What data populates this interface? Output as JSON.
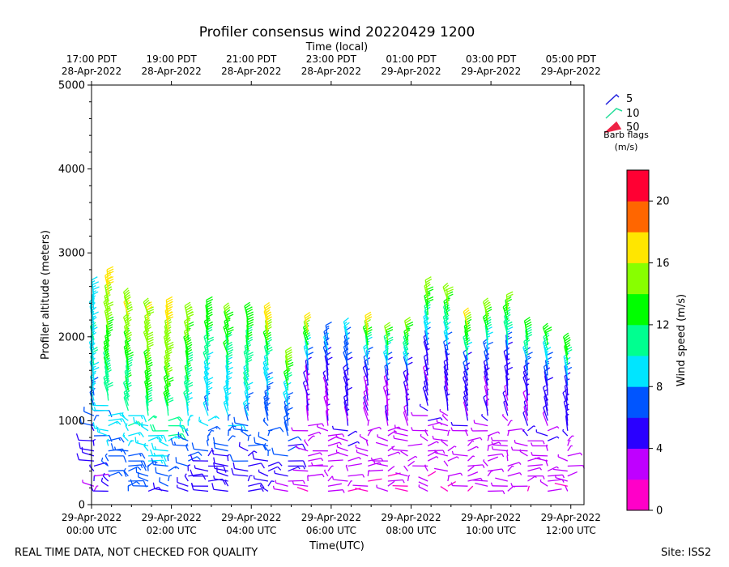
{
  "chart_data": {
    "type": "scatter",
    "title": "Profiler consensus wind 20220429 1200",
    "top_axis_label": "Time (local)",
    "xlabel": "Time(UTC)",
    "ylabel": "Profiler altitude (meters)",
    "ylim": [
      0,
      5000
    ],
    "xlim_hours": [
      0,
      12.33
    ],
    "y_ticks": [
      0,
      1000,
      2000,
      3000,
      4000,
      5000
    ],
    "bottom_ticks": [
      {
        "hour": 0,
        "line1": "29-Apr-2022",
        "line2": "00:00 UTC"
      },
      {
        "hour": 2,
        "line1": "29-Apr-2022",
        "line2": "02:00 UTC"
      },
      {
        "hour": 4,
        "line1": "29-Apr-2022",
        "line2": "04:00 UTC"
      },
      {
        "hour": 6,
        "line1": "29-Apr-2022",
        "line2": "06:00 UTC"
      },
      {
        "hour": 8,
        "line1": "29-Apr-2022",
        "line2": "08:00 UTC"
      },
      {
        "hour": 10,
        "line1": "29-Apr-2022",
        "line2": "10:00 UTC"
      },
      {
        "hour": 12,
        "line1": "29-Apr-2022",
        "line2": "12:00 UTC"
      }
    ],
    "top_ticks": [
      {
        "hour": 0,
        "line1": "17:00 PDT",
        "line2": "28-Apr-2022"
      },
      {
        "hour": 2,
        "line1": "19:00 PDT",
        "line2": "28-Apr-2022"
      },
      {
        "hour": 4,
        "line1": "21:00 PDT",
        "line2": "28-Apr-2022"
      },
      {
        "hour": 6,
        "line1": "23:00 PDT",
        "line2": "28-Apr-2022"
      },
      {
        "hour": 8,
        "line1": "01:00 PDT",
        "line2": "29-Apr-2022"
      },
      {
        "hour": 10,
        "line1": "03:00 PDT",
        "line2": "29-Apr-2022"
      },
      {
        "hour": 12,
        "line1": "05:00 PDT",
        "line2": "29-Apr-2022"
      }
    ],
    "legend": {
      "title": "Barb flags",
      "units": "(m/s)",
      "placement": "upper-right",
      "entries": [
        {
          "label": "5",
          "color": "#2222dd"
        },
        {
          "label": "10",
          "color": "#22dd99"
        },
        {
          "label": "50",
          "color": "#ee2244"
        }
      ]
    },
    "colorbar": {
      "label": "Wind speed (m/s)",
      "vmin": 0,
      "vmax": 22,
      "ticks": [
        0,
        4,
        8,
        12,
        16,
        20
      ],
      "colors": [
        "#ff00c8",
        "#bf00ff",
        "#2a00ff",
        "#0055ff",
        "#00e5ff",
        "#00ff90",
        "#00ff00",
        "#88ff00",
        "#ffe600",
        "#ff6600",
        "#ff0033"
      ]
    },
    "profiles": [
      {
        "hour": 0.06,
        "top": 2500,
        "vlow": 3,
        "vmax": 10,
        "vtop": 8
      },
      {
        "hour": 0.42,
        "top": 2650,
        "vlow": 5,
        "vmax": 13,
        "vtop": 17
      },
      {
        "hour": 0.92,
        "top": 2400,
        "vlow": 5,
        "vmax": 13,
        "vtop": 16
      },
      {
        "hour": 1.42,
        "top": 2300,
        "vlow": 5,
        "vmax": 14,
        "vtop": 16
      },
      {
        "hour": 1.92,
        "top": 2270,
        "vlow": 5,
        "vmax": 15,
        "vtop": 17
      },
      {
        "hour": 2.42,
        "top": 2240,
        "vlow": 4,
        "vmax": 12,
        "vtop": 16
      },
      {
        "hour": 2.92,
        "top": 2300,
        "vlow": 4,
        "vmax": 10,
        "vtop": 14
      },
      {
        "hour": 3.42,
        "top": 2250,
        "vlow": 4,
        "vmax": 10,
        "vtop": 15
      },
      {
        "hour": 3.92,
        "top": 2200,
        "vlow": 4,
        "vmax": 10,
        "vtop": 14
      },
      {
        "hour": 4.42,
        "top": 2200,
        "vlow": 4,
        "vmax": 9,
        "vtop": 18
      },
      {
        "hour": 4.92,
        "top": 1700,
        "vlow": 3,
        "vmax": 8,
        "vtop": 17
      },
      {
        "hour": 5.42,
        "top": 2100,
        "vlow": 2,
        "vmax": 4,
        "vtop": 16
      },
      {
        "hour": 5.92,
        "top": 2000,
        "vlow": 2,
        "vmax": 4,
        "vtop": 9
      },
      {
        "hour": 6.42,
        "top": 2050,
        "vlow": 2,
        "vmax": 5,
        "vtop": 9
      },
      {
        "hour": 6.92,
        "top": 2100,
        "vlow": 2,
        "vmax": 4,
        "vtop": 16
      },
      {
        "hour": 7.42,
        "top": 2000,
        "vlow": 2,
        "vmax": 4,
        "vtop": 15
      },
      {
        "hour": 7.92,
        "top": 2050,
        "vlow": 2,
        "vmax": 4,
        "vtop": 15
      },
      {
        "hour": 8.42,
        "top": 2500,
        "vlow": 2,
        "vmax": 5,
        "vtop": 15
      },
      {
        "hour": 8.92,
        "top": 2450,
        "vlow": 2,
        "vmax": 5,
        "vtop": 15
      },
      {
        "hour": 9.42,
        "top": 2150,
        "vlow": 2,
        "vmax": 5,
        "vtop": 16
      },
      {
        "hour": 9.92,
        "top": 2280,
        "vlow": 2,
        "vmax": 5,
        "vtop": 16
      },
      {
        "hour": 10.42,
        "top": 2330,
        "vlow": 2,
        "vmax": 5,
        "vtop": 15
      },
      {
        "hour": 10.92,
        "top": 2050,
        "vlow": 2,
        "vmax": 5,
        "vtop": 14
      },
      {
        "hour": 11.42,
        "top": 1980,
        "vlow": 2,
        "vmax": 5,
        "vtop": 13
      },
      {
        "hour": 11.92,
        "top": 1850,
        "vlow": 2,
        "vmax": 5,
        "vtop": 14
      }
    ]
  },
  "footer": {
    "left_note": "REAL TIME DATA, NOT CHECKED FOR QUALITY",
    "site": "Site: ISS2"
  }
}
